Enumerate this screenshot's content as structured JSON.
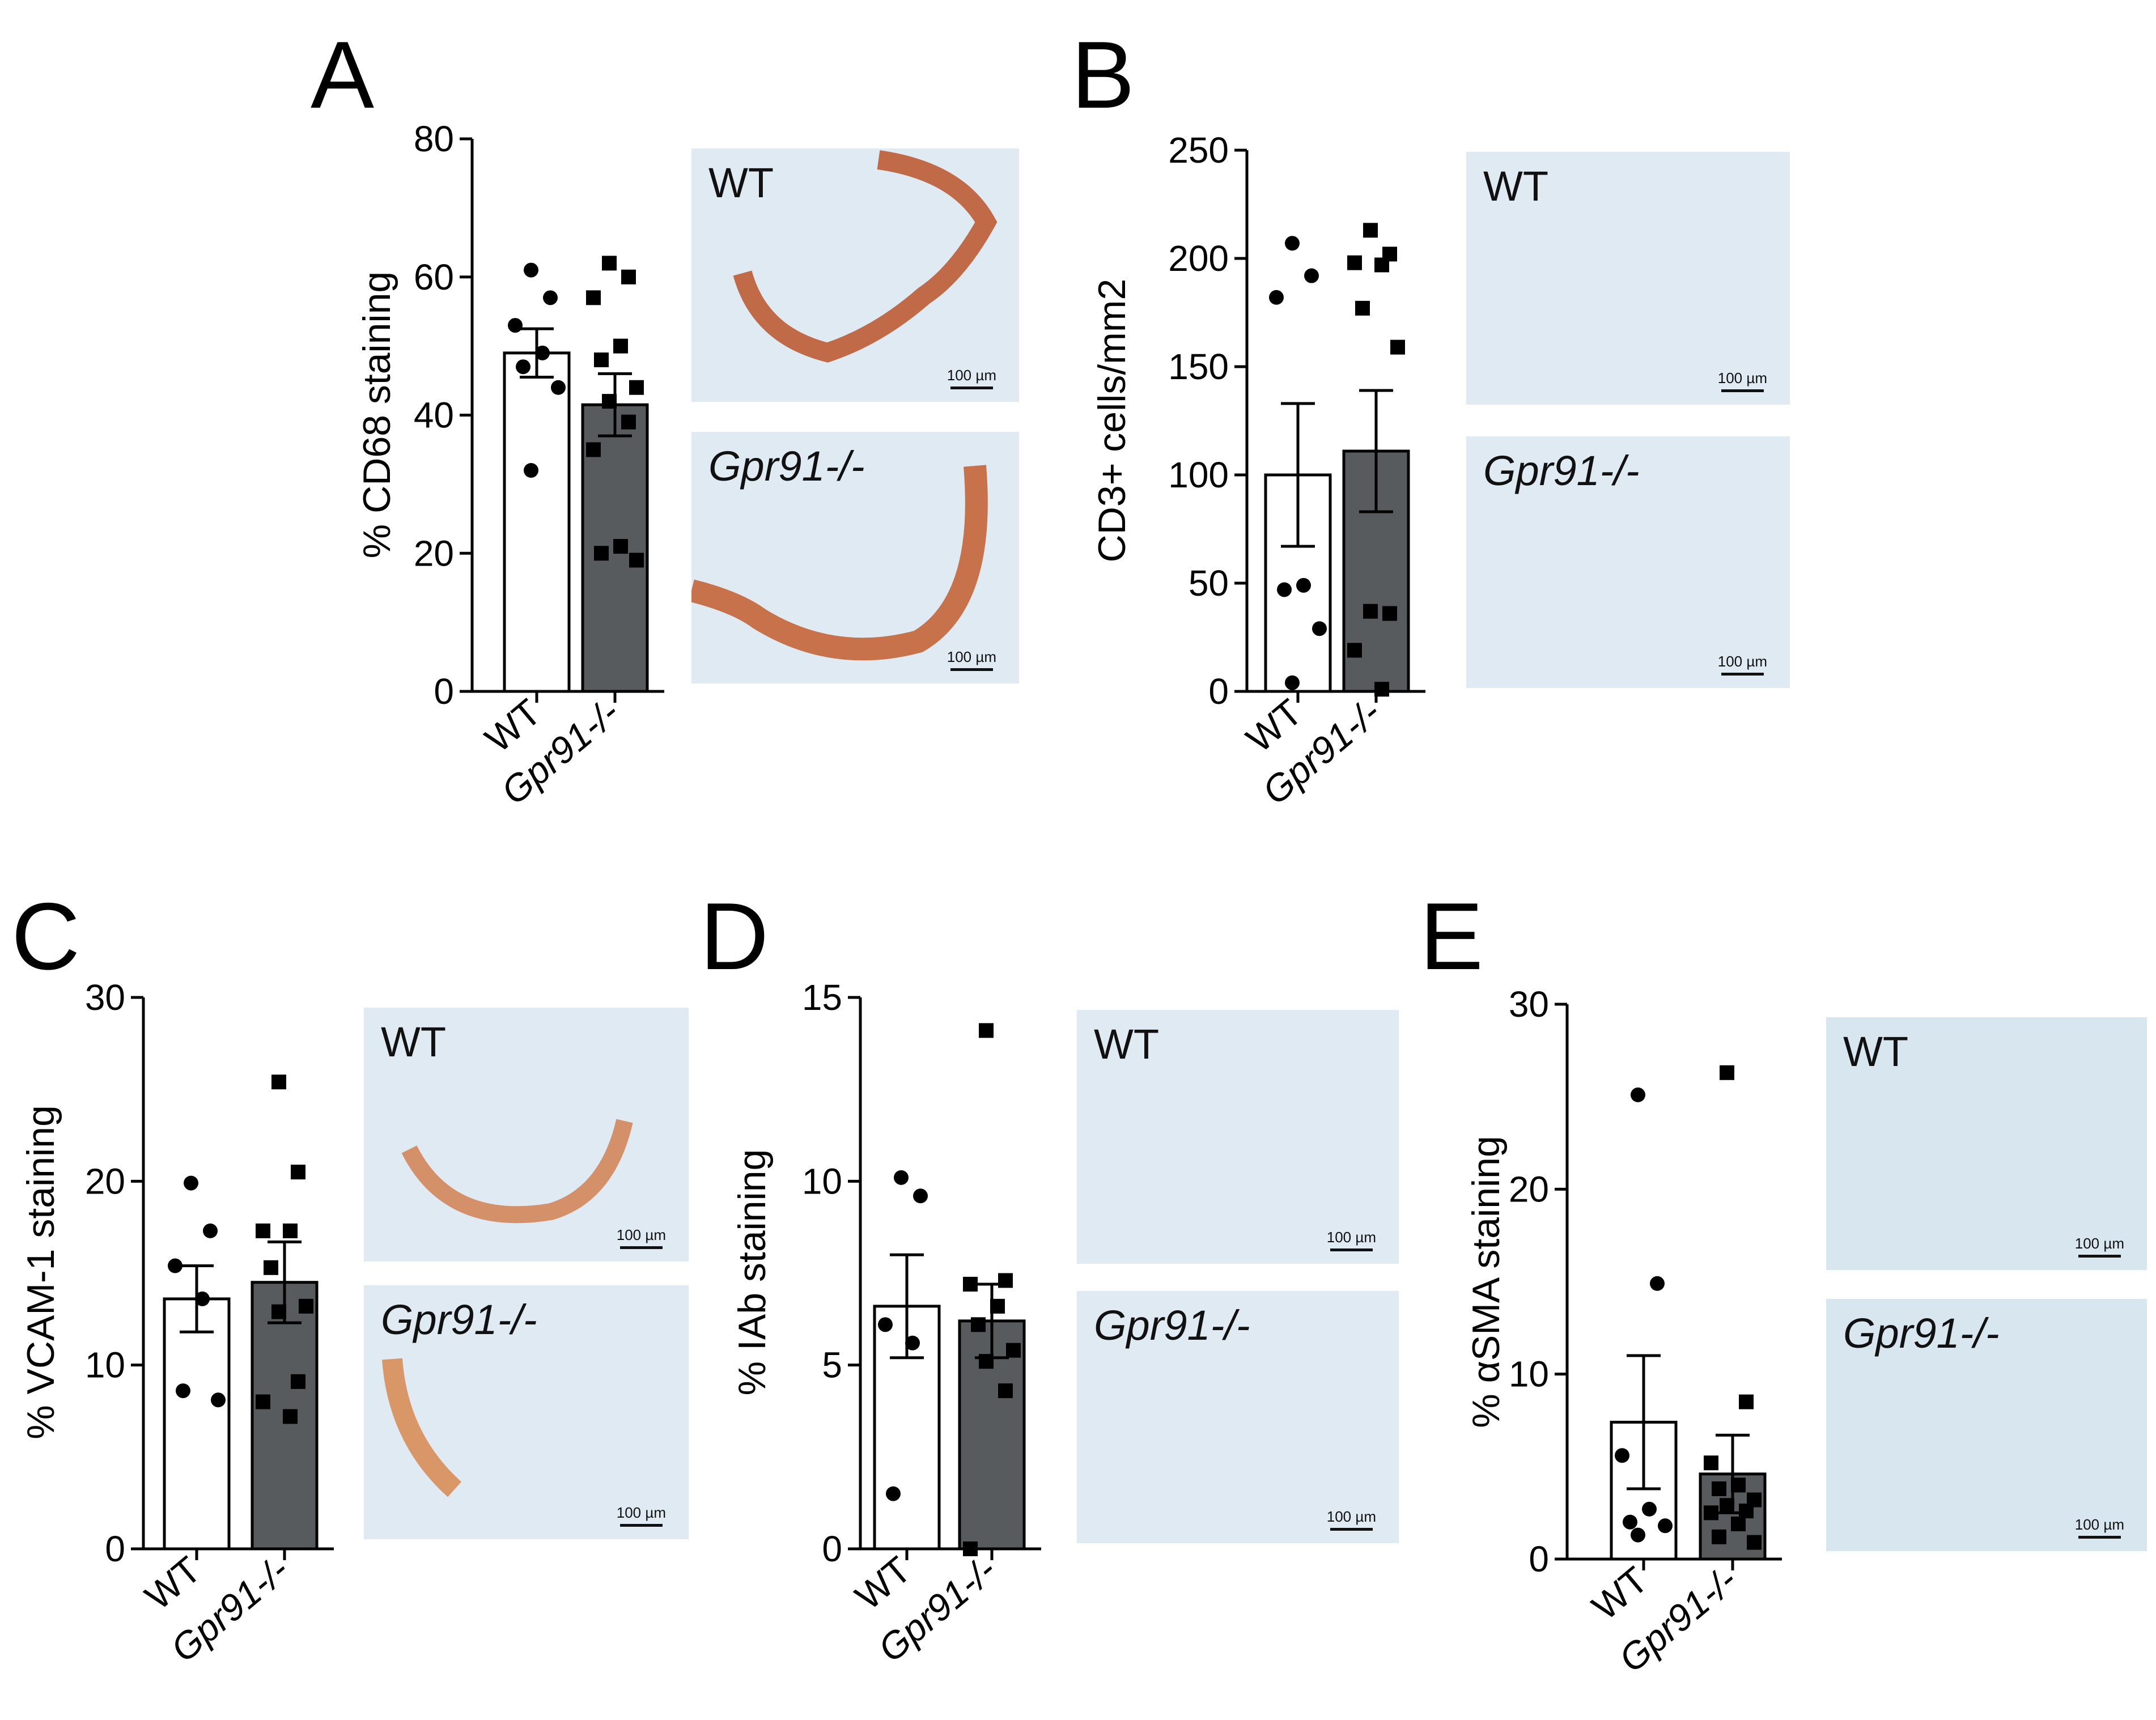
{
  "colors": {
    "wt_bar": "#ffffff",
    "ko_bar": "#575b5e",
    "ink": "#000000",
    "tissue": "#dfeaf2"
  },
  "chart_data": [
    {
      "panel": "A",
      "type": "bar",
      "categories": [
        "WT",
        "Gpr91-/-"
      ],
      "values": [
        49,
        41.5
      ],
      "sem": [
        3.5,
        4.5
      ],
      "points": [
        [
          61,
          57,
          53,
          49,
          47,
          44,
          32
        ],
        [
          62,
          60,
          57,
          50,
          48,
          44,
          42,
          39,
          35,
          21,
          20,
          19
        ]
      ],
      "ylabel": "% CD68 staining",
      "ylim": [
        0,
        80
      ],
      "ticks": [
        0,
        20,
        40,
        60,
        80
      ],
      "images": [
        {
          "label": "WT",
          "scale": "100 µm"
        },
        {
          "label": "Gpr91-/-",
          "scale": "100 µm"
        }
      ]
    },
    {
      "panel": "B",
      "type": "bar",
      "categories": [
        "WT",
        "Gpr91-/-"
      ],
      "values": [
        100,
        111
      ],
      "sem": [
        33,
        28
      ],
      "points": [
        [
          207,
          192,
          182,
          49,
          47,
          29,
          4
        ],
        [
          213,
          202,
          198,
          197,
          177,
          159,
          37,
          36,
          19,
          1
        ]
      ],
      "ylabel": "CD3+ cells/mm2",
      "ylim": [
        0,
        250
      ],
      "ticks": [
        0,
        50,
        100,
        150,
        200,
        250
      ],
      "images": [
        {
          "label": "WT",
          "scale": "100 µm"
        },
        {
          "label": "Gpr91-/-",
          "scale": "100 µm"
        }
      ]
    },
    {
      "panel": "C",
      "type": "bar",
      "categories": [
        "WT",
        "Gpr91-/-"
      ],
      "values": [
        13.6,
        14.5
      ],
      "sem": [
        1.8,
        2.2
      ],
      "points": [
        [
          19.9,
          17.3,
          15.4,
          13.6,
          8.6,
          8.1
        ],
        [
          25.4,
          20.5,
          17.3,
          17.3,
          15.3,
          13.2,
          12.9,
          9.1,
          8.0,
          7.2
        ]
      ],
      "ylabel": "% VCAM-1 staining",
      "ylim": [
        0,
        30
      ],
      "ticks": [
        0,
        10,
        20,
        30
      ],
      "images": [
        {
          "label": "WT",
          "scale": "100 µm"
        },
        {
          "label": "Gpr91-/-",
          "scale": "100 µm"
        }
      ]
    },
    {
      "panel": "D",
      "type": "bar",
      "categories": [
        "WT",
        "Gpr91-/-"
      ],
      "values": [
        6.6,
        6.2
      ],
      "sem": [
        1.4,
        1.0
      ],
      "points": [
        [
          10.1,
          9.6,
          6.1,
          5.6,
          1.5
        ],
        [
          14.1,
          7.3,
          7.2,
          6.6,
          6.1,
          5.4,
          5.1,
          4.3,
          0.0
        ]
      ],
      "ylabel": "% IAb staining",
      "ylim": [
        0,
        15
      ],
      "ticks": [
        0,
        5,
        10,
        15
      ],
      "images": [
        {
          "label": "WT",
          "scale": "100 µm"
        },
        {
          "label": "Gpr91-/-",
          "scale": "100 µm"
        }
      ]
    },
    {
      "panel": "E",
      "type": "bar",
      "categories": [
        "WT",
        "Gpr91-/-"
      ],
      "values": [
        7.4,
        4.6
      ],
      "sem": [
        3.6,
        2.1
      ],
      "points": [
        [
          25.1,
          14.9,
          5.6,
          2.7,
          2.0,
          1.8,
          1.3
        ],
        [
          26.3,
          8.5,
          5.2,
          4.0,
          3.8,
          3.2,
          2.9,
          2.6,
          2.5,
          1.9,
          1.2,
          0.9
        ]
      ],
      "ylabel": "% αSMA staining",
      "ylim": [
        0,
        30
      ],
      "ticks": [
        0,
        10,
        20,
        30
      ],
      "images": [
        {
          "label": "WT",
          "scale": "100 µm"
        },
        {
          "label": "Gpr91-/-",
          "scale": "100 µm"
        }
      ]
    }
  ]
}
